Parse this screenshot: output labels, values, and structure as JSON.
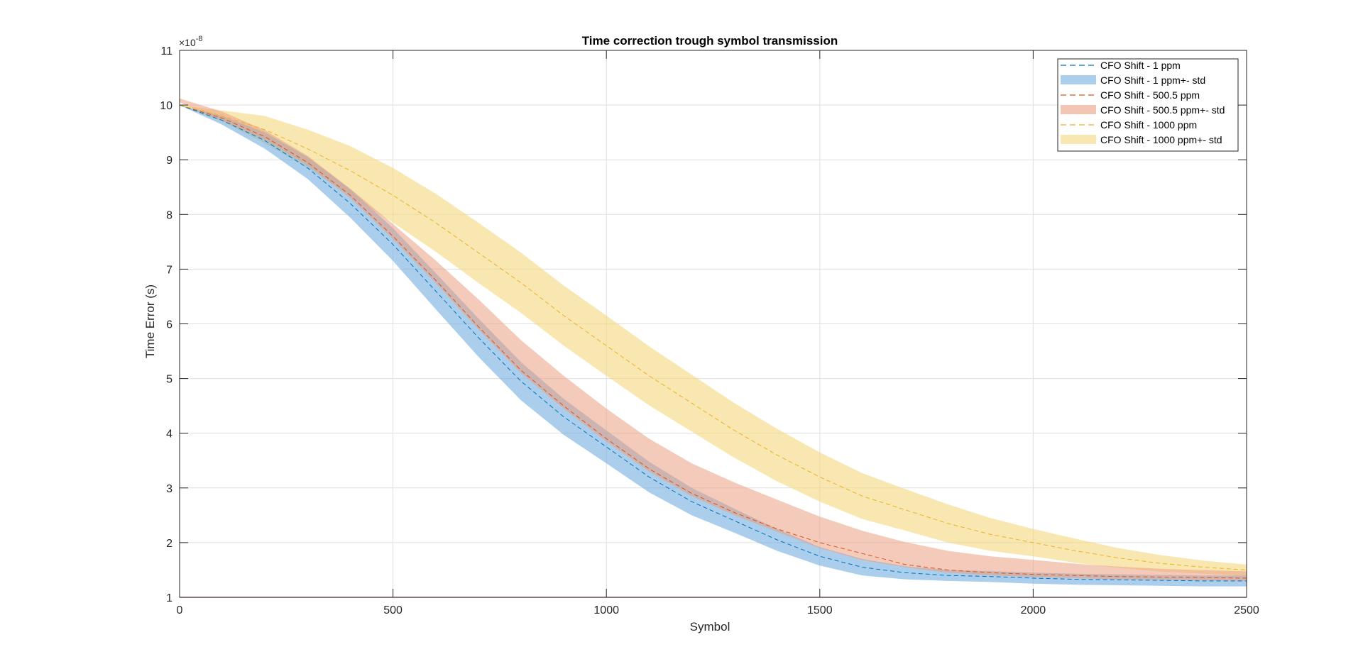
{
  "chart_data": {
    "type": "line",
    "title": "Time correction trough symbol transmission",
    "xlabel": "Symbol",
    "ylabel": "Time Error (s)",
    "xlim": [
      0,
      2500
    ],
    "ylim": [
      1,
      11
    ],
    "y_exponent_text": "×10",
    "y_exponent_power": "-8",
    "x_ticks": [
      "0",
      "500",
      "1000",
      "1500",
      "2000",
      "2500"
    ],
    "x_tick_values": [
      0,
      500,
      1000,
      1500,
      2000,
      2500
    ],
    "y_ticks": [
      "1",
      "2",
      "3",
      "4",
      "5",
      "6",
      "7",
      "8",
      "9",
      "10",
      "11"
    ],
    "y_tick_values": [
      1,
      2,
      3,
      4,
      5,
      6,
      7,
      8,
      9,
      10,
      11
    ],
    "grid": true,
    "legend_position": "top-right",
    "baseline": {
      "y": 1,
      "color": "#A2142F"
    },
    "x": [
      0,
      100,
      200,
      300,
      400,
      500,
      600,
      700,
      800,
      900,
      1000,
      1100,
      1200,
      1300,
      1400,
      1500,
      1600,
      1700,
      1800,
      1900,
      2000,
      2100,
      2200,
      2300,
      2400,
      2500
    ],
    "series": [
      {
        "name": "CFO Shift - 1 ppm",
        "band_name": "CFO Shift - 1 ppm+- std",
        "color": "#0072BD",
        "band_color": "#72ADDE",
        "mean": [
          10.0,
          9.72,
          9.35,
          8.85,
          8.2,
          7.45,
          6.6,
          5.75,
          4.95,
          4.3,
          3.75,
          3.2,
          2.75,
          2.4,
          2.05,
          1.75,
          1.55,
          1.45,
          1.4,
          1.38,
          1.35,
          1.33,
          1.32,
          1.31,
          1.3,
          1.3
        ],
        "std": [
          0.0,
          0.08,
          0.15,
          0.2,
          0.26,
          0.3,
          0.33,
          0.35,
          0.35,
          0.33,
          0.3,
          0.28,
          0.25,
          0.22,
          0.2,
          0.17,
          0.15,
          0.12,
          0.1,
          0.1,
          0.1,
          0.1,
          0.1,
          0.1,
          0.1,
          0.1
        ]
      },
      {
        "name": "CFO Shift - 500.5 ppm",
        "band_name": "CFO Shift - 500.5 ppm+- std",
        "color": "#D95319",
        "band_color": "#EB9F82",
        "mean": [
          10.0,
          9.76,
          9.42,
          8.95,
          8.35,
          7.6,
          6.8,
          5.95,
          5.15,
          4.5,
          3.9,
          3.35,
          2.9,
          2.55,
          2.25,
          2.0,
          1.8,
          1.6,
          1.5,
          1.45,
          1.42,
          1.4,
          1.38,
          1.37,
          1.36,
          1.35
        ]
      },
      {
        "name": "CFO Shift - 1000 ppm",
        "band_name": "CFO Shift - 1000 ppm+- std",
        "color": "#EDB120",
        "band_color": "#F5D77E",
        "mean": [
          10.0,
          9.8,
          9.55,
          9.2,
          8.8,
          8.35,
          7.85,
          7.3,
          6.75,
          6.15,
          5.6,
          5.05,
          4.55,
          4.05,
          3.6,
          3.2,
          2.85,
          2.6,
          2.35,
          2.15,
          2.0,
          1.85,
          1.72,
          1.62,
          1.55,
          1.5
        ],
        "std": [
          0.0,
          0.1,
          0.25,
          0.35,
          0.45,
          0.5,
          0.53,
          0.55,
          0.55,
          0.55,
          0.55,
          0.54,
          0.52,
          0.5,
          0.48,
          0.45,
          0.42,
          0.38,
          0.35,
          0.3,
          0.25,
          0.22,
          0.18,
          0.15,
          0.12,
          0.1
        ]
      }
    ]
  }
}
